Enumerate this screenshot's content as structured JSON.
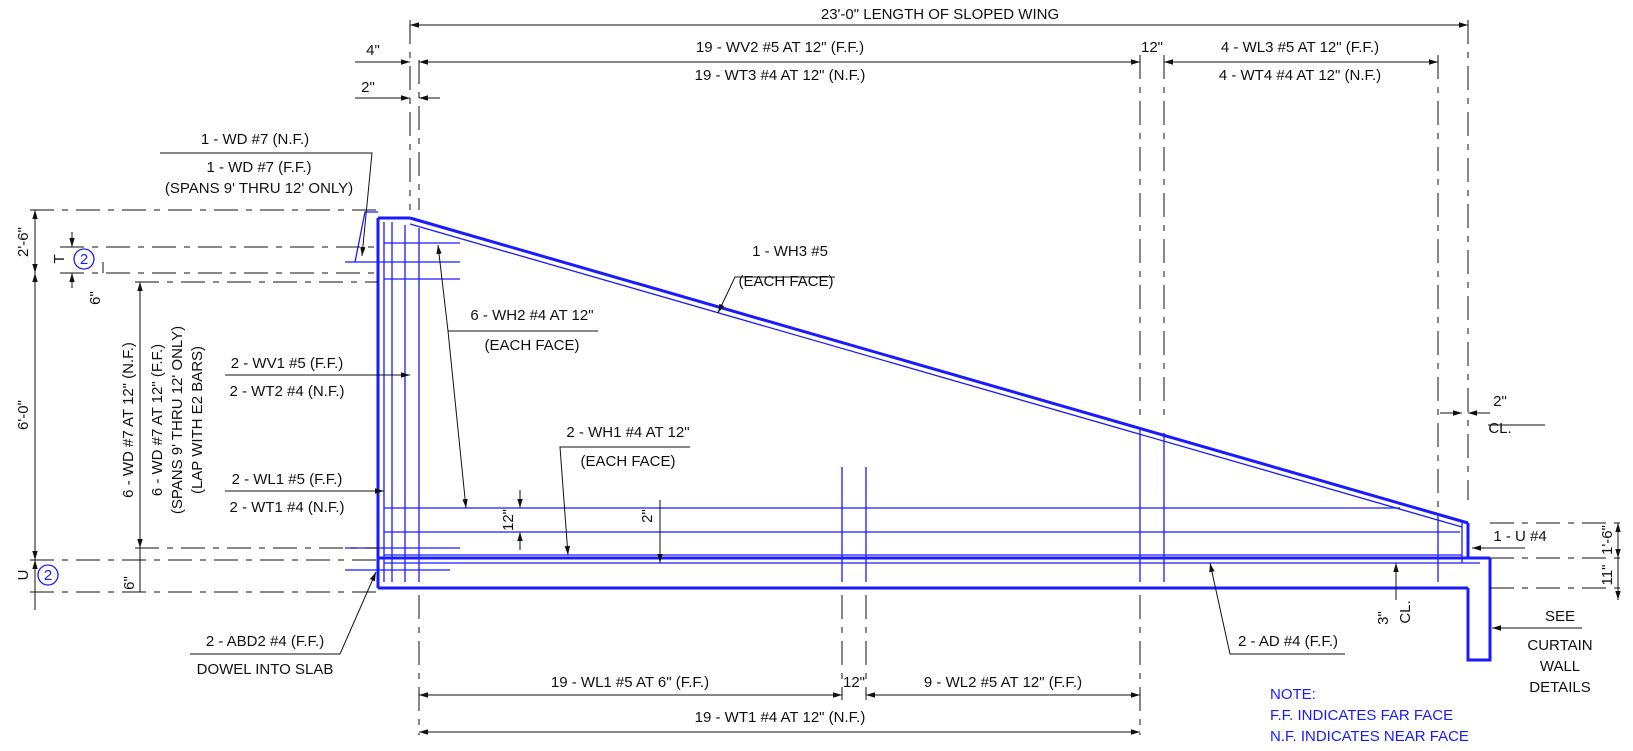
{
  "labels": {
    "length_of_sloped_wing": "23'-0\" LENGTH OF SLOPED WING",
    "wv2": "19 - WV2 #5 AT 12\" (F.F.)",
    "wt3": "19 - WT3 #4 AT 12\" (N.F.)",
    "top_12": "12\"",
    "wl3": "4 - WL3 #5 AT 12\" (F.F.)",
    "wt4": "4 - WT4 #4 AT 12\" (N.F.)",
    "dim_4": "4\"",
    "dim_2_top": "2\"",
    "wd7_nf": "1 - WD #7 (N.F.)",
    "wd7_ff": "1 - WD #7 (F.F.)",
    "spans_9_12": "(SPANS 9' THRU 12' ONLY)",
    "dim_2_6": "2'-6\"",
    "section_t": "T",
    "section_u": "U",
    "section_num_t": "2",
    "section_num_u": "2",
    "dim_6_upper": "6\"",
    "dim_6_0": "6'-0\"",
    "dim_6_lower": "6\"",
    "wd7_vert_nf": "6 - WD #7 AT 12\" (N.F.)",
    "wd7_vert_ff": "6 - WD #7 AT 12\" (F.F.)",
    "spans_9_12_vert": "(SPANS 9' THRU 12' ONLY)",
    "lap_e2": "(LAP WITH E2 BARS)",
    "wh3": "1 - WH3 #5",
    "wh3_each": "(EACH FACE)",
    "wh2": "6 - WH2 #4 AT 12\"",
    "wh2_each": "(EACH FACE)",
    "wv1": "2 - WV1 #5 (F.F.)",
    "wt2": "2 - WT2 #4 (N.F.)",
    "wh1": "2 - WH1 #4 AT 12\"",
    "wh1_each": "(EACH FACE)",
    "wl1_ff": "2 - WL1 #5 (F.F.)",
    "wt1_nf": "2 - WT1 #4 (N.F.)",
    "dim_12_vert": "12\"",
    "dim_2_vert": "2\"",
    "dim_2_right": "2\"",
    "cl_right": "CL.",
    "u4": "1 - U #4",
    "dim_1_6": "1'-6\"",
    "dim_11": "11\"",
    "dim_3": "3\"",
    "cl_bottom": "CL.",
    "abd2": "2 - ABD2 #4 (F.F.)",
    "dowel": "DOWEL INTO SLAB",
    "ad4": "2 - AD #4 (F.F.)",
    "see": "SEE",
    "curtain": "CURTAIN",
    "wall": "WALL",
    "details": "DETAILS",
    "wl1_bottom": "19 - WL1 #5 AT 6\" (F.F.)",
    "bottom_12": "12\"",
    "wl2_bottom": "9 - WL2 #5 AT 12\" (F.F.)",
    "wt1_bottom": "19 - WT1 #4 AT 12\" (N.F.)",
    "note_title": "NOTE:",
    "note_ff": "F.F. INDICATES FAR FACE",
    "note_nf": "N.F. INDICATES NEAR FACE"
  },
  "colors": {
    "rebar": "#1a1aff",
    "dimension": "#111111"
  }
}
